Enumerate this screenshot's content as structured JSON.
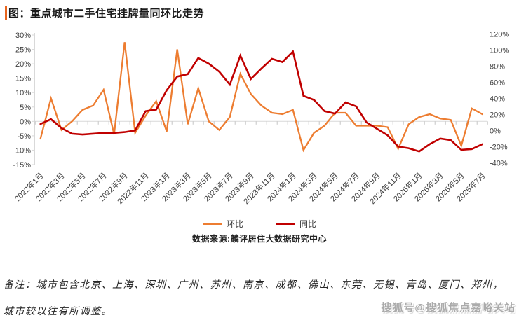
{
  "page": {
    "title": "图：重点城市二手住宅挂牌量同环比走势"
  },
  "chart_data": {
    "type": "line",
    "title": "图：重点城市二手住宅挂牌量同环比走势",
    "categories": [
      "2022年1月",
      "2022年2月",
      "2022年3月",
      "2022年4月",
      "2022年5月",
      "2022年6月",
      "2022年7月",
      "2022年8月",
      "2022年9月",
      "2022年10月",
      "2022年11月",
      "2022年12月",
      "2023年1月",
      "2023年2月",
      "2023年3月",
      "2023年4月",
      "2023年5月",
      "2023年6月",
      "2023年7月",
      "2023年8月",
      "2023年9月",
      "2023年10月",
      "2023年11月",
      "2023年12月",
      "2024年1月",
      "2024年2月",
      "2024年3月",
      "2024年4月",
      "2024年5月",
      "2024年6月",
      "2024年7月",
      "2024年8月",
      "2024年9月",
      "2024年10月",
      "2024年11月",
      "2024年12月",
      "2025年1月",
      "2025年2月",
      "2025年3月",
      "2025年4月",
      "2025年5月",
      "2025年6月",
      "2025年7月"
    ],
    "x_tick_step": 2,
    "series": [
      {
        "name": "环比",
        "axis": "left",
        "color": "#ED7D31",
        "values": [
          -6,
          8,
          -3,
          0,
          4,
          5.5,
          11,
          -4.5,
          27.5,
          -4,
          2,
          7,
          -3.5,
          25,
          -1,
          11.5,
          0,
          -3,
          1.5,
          16.5,
          9.5,
          5.5,
          3,
          2.5,
          4,
          -10,
          -4,
          -1.5,
          3,
          3,
          -1.5,
          -1.5,
          -1.5,
          -2,
          -9.5,
          -1,
          1.5,
          2.5,
          1,
          0.5,
          -8.5,
          4.5,
          2.5
        ]
      },
      {
        "name": "同比",
        "axis": "right",
        "color": "#C00000",
        "values": [
          8,
          14,
          3,
          -4,
          -5,
          -4,
          -3,
          -3,
          -2,
          0,
          24,
          26,
          50,
          67,
          70,
          90,
          83,
          73,
          57,
          93,
          64,
          77,
          89,
          85,
          98,
          43,
          38,
          24,
          21,
          35,
          30,
          10,
          2,
          -6,
          -20,
          -22,
          -26,
          -17,
          -10,
          -12,
          -24,
          -23,
          -17
        ]
      }
    ],
    "left_axis": {
      "min": -15,
      "max": 30,
      "tick_labels": [
        "30%",
        "25%",
        "20%",
        "15%",
        "10%",
        "5%",
        "0%",
        "-5%",
        "-10%",
        "-15%"
      ],
      "unit": "%"
    },
    "right_axis": {
      "min": -40,
      "max": 120,
      "tick_labels": [
        "120%",
        "100%",
        "80%",
        "60%",
        "40%",
        "20%",
        "0%",
        "-20%",
        "-40%"
      ],
      "unit": "%"
    },
    "gridlines": "zero line only",
    "legend_position": "bottom"
  },
  "legend": {
    "items": [
      {
        "label": "环比",
        "color": "#ED7D31"
      },
      {
        "label": "同比",
        "color": "#C00000"
      }
    ]
  },
  "source": {
    "text": "数据来源:麟评居住大数据研究中心"
  },
  "note": {
    "line1": "备注：城市包含北京、上海、深圳、广州、苏州、南京、成都、佛山、东莞、无锡、青岛、厦门、郑州，",
    "line2": "城市较以往有所调整。"
  },
  "watermark": {
    "text": "搜狐号@搜狐焦点嘉峪关站"
  }
}
